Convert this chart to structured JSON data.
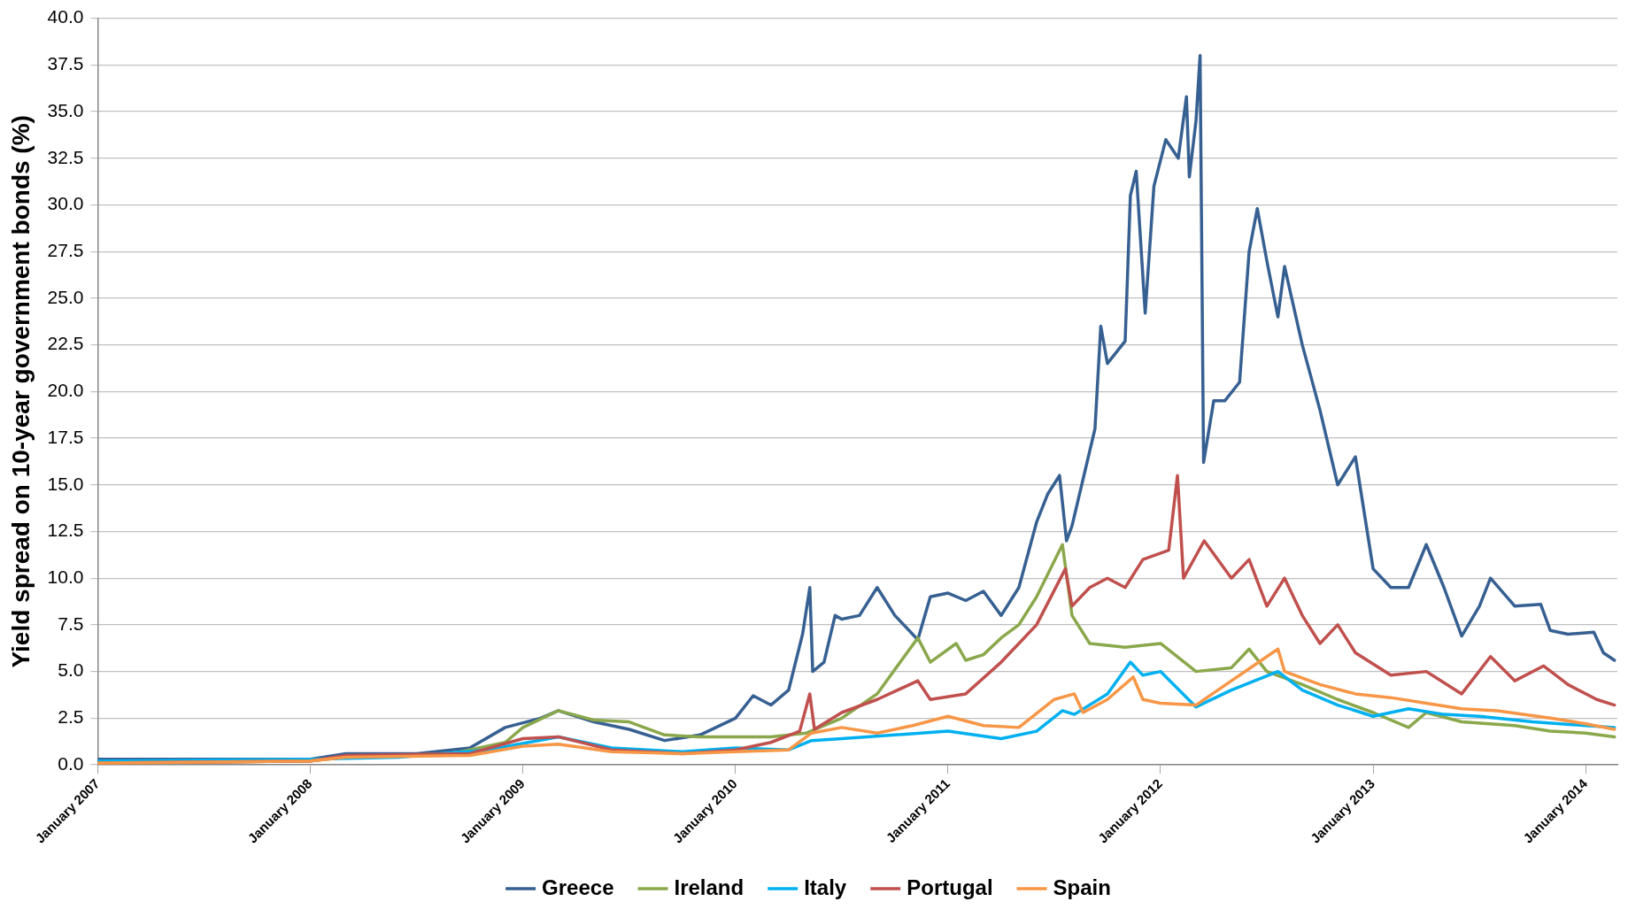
{
  "chart_data": {
    "type": "line",
    "ylabel": "Yield spread on 10-year government bonds (%)",
    "xlim": [
      "2007-01",
      "2014-02-25"
    ],
    "xticks": [
      {
        "value": "2007-01",
        "label": "January 2007"
      },
      {
        "value": "2008-01",
        "label": "January 2008"
      },
      {
        "value": "2009-01",
        "label": "January 2009"
      },
      {
        "value": "2010-01",
        "label": "January 2010"
      },
      {
        "value": "2011-01",
        "label": "January 2011"
      },
      {
        "value": "2012-01",
        "label": "January 2012"
      },
      {
        "value": "2013-01",
        "label": "January 2013"
      },
      {
        "value": "2014-01",
        "label": "January 2014"
      }
    ],
    "ylim": [
      0,
      40
    ],
    "yticks": [
      {
        "value": 0,
        "label": "0.0"
      },
      {
        "value": 2.5,
        "label": "2.5"
      },
      {
        "value": 5,
        "label": "5.0"
      },
      {
        "value": 7.5,
        "label": "7.5"
      },
      {
        "value": 10,
        "label": "10.0"
      },
      {
        "value": 12.5,
        "label": "12.5"
      },
      {
        "value": 15,
        "label": "15.0"
      },
      {
        "value": 17.5,
        "label": "17.5"
      },
      {
        "value": 20,
        "label": "20.0"
      },
      {
        "value": 22.5,
        "label": "22.5"
      },
      {
        "value": 25,
        "label": "25.0"
      },
      {
        "value": 27.5,
        "label": "27.5"
      },
      {
        "value": 30,
        "label": "30.0"
      },
      {
        "value": 32.5,
        "label": "32.5"
      },
      {
        "value": 35,
        "label": "35.0"
      },
      {
        "value": 37.5,
        "label": "37.5"
      },
      {
        "value": 40,
        "label": "40.0"
      }
    ],
    "grid": "y",
    "legend": "bottom",
    "marker": "none",
    "line_style": "solid",
    "series": [
      {
        "name": "Greece",
        "color": "#376092",
        "x": [
          "2007-01",
          "2007-07",
          "2008-01",
          "2008-03",
          "2008-07",
          "2008-10",
          "2008-12",
          "2009-02",
          "2009-03",
          "2009-05",
          "2009-07",
          "2009-09",
          "2009-11",
          "2010-01",
          "2010-02",
          "2010-03",
          "2010-04",
          "2010-04-25",
          "2010-05-07",
          "2010-05-12",
          "2010-06",
          "2010-06-20",
          "2010-07",
          "2010-08",
          "2010-09",
          "2010-10",
          "2010-11-10",
          "2010-12",
          "2011-01",
          "2011-02",
          "2011-03",
          "2011-04",
          "2011-05",
          "2011-06",
          "2011-06-20",
          "2011-07-10",
          "2011-07-22",
          "2011-08",
          "2011-09-10",
          "2011-09-20",
          "2011-10",
          "2011-11",
          "2011-11-10",
          "2011-11-20",
          "2011-12-05",
          "2011-12-20",
          "2012-01-10",
          "2012-02-01",
          "2012-02-15",
          "2012-02-20",
          "2012-03-01",
          "2012-03-08",
          "2012-03-14",
          "2012-04",
          "2012-04-20",
          "2012-05-15",
          "2012-06",
          "2012-06-15",
          "2012-07",
          "2012-07-20",
          "2012-08",
          "2012-09",
          "2012-10",
          "2012-11",
          "2012-12",
          "2013-01",
          "2013-02",
          "2013-03",
          "2013-04",
          "2013-05",
          "2013-06",
          "2013-07",
          "2013-07-20",
          "2013-09",
          "2013-10-15",
          "2013-11",
          "2013-12",
          "2014-01-15",
          "2014-02",
          "2014-02-20"
        ],
        "values": [
          0.3,
          0.3,
          0.3,
          0.6,
          0.6,
          0.9,
          2.0,
          2.5,
          2.9,
          2.3,
          1.9,
          1.3,
          1.6,
          2.5,
          3.7,
          3.2,
          4.0,
          7.0,
          9.5,
          5.0,
          5.5,
          8.0,
          7.8,
          8.0,
          9.5,
          8.0,
          6.7,
          9.0,
          9.2,
          8.8,
          9.3,
          8.0,
          9.5,
          13.0,
          14.5,
          15.5,
          12.0,
          12.8,
          18,
          23.5,
          21.5,
          22.7,
          30.5,
          31.8,
          24.2,
          31.0,
          33.5,
          32.5,
          35.8,
          31.5,
          34.5,
          38.0,
          16.2,
          19.5,
          19.5,
          20.5,
          27.5,
          29.8,
          27.0,
          24.0,
          26.7,
          22.5,
          19.0,
          15.0,
          16.5,
          10.5,
          9.5,
          9.5,
          11.8,
          9.5,
          6.9,
          8.5,
          10.0,
          8.5,
          8.6,
          7.2,
          7.0,
          7.1,
          6.0,
          5.6
        ]
      },
      {
        "name": "Ireland",
        "color": "#8aa84b",
        "x": [
          "2007-01",
          "2008-01",
          "2008-03",
          "2008-09",
          "2008-12",
          "2009-01",
          "2009-03",
          "2009-05",
          "2009-07",
          "2009-09",
          "2009-11",
          "2010-01",
          "2010-03",
          "2010-05",
          "2010-07",
          "2010-09",
          "2010-11-10",
          "2010-12",
          "2011-01-15",
          "2011-02",
          "2011-03",
          "2011-04",
          "2011-05",
          "2011-06",
          "2011-07-15",
          "2011-08",
          "2011-09",
          "2011-11",
          "2012-01",
          "2012-03",
          "2012-05",
          "2012-06",
          "2012-07",
          "2012-09",
          "2012-11",
          "2013-01",
          "2013-03",
          "2013-04",
          "2013-06",
          "2013-09",
          "2013-11",
          "2014-01",
          "2014-02-20"
        ],
        "values": [
          0.1,
          0.2,
          0.4,
          0.6,
          1.2,
          2.0,
          2.9,
          2.4,
          2.3,
          1.6,
          1.5,
          1.5,
          1.5,
          1.7,
          2.5,
          3.8,
          6.8,
          5.5,
          6.5,
          5.6,
          5.9,
          6.8,
          7.5,
          9.0,
          11.8,
          8.0,
          6.5,
          6.3,
          6.5,
          5.0,
          5.2,
          6.2,
          5.0,
          4.3,
          3.5,
          2.8,
          2.0,
          2.8,
          2.3,
          2.1,
          1.8,
          1.7,
          1.5
        ]
      },
      {
        "name": "Italy",
        "color": "#00b0f0",
        "x": [
          "2007-01",
          "2008-01",
          "2008-06",
          "2008-11",
          "2009-03",
          "2009-06",
          "2009-10",
          "2010-01",
          "2010-04",
          "2010-05-10",
          "2010-07",
          "2010-10",
          "2011-01",
          "2011-04",
          "2011-06",
          "2011-07-15",
          "2011-08-05",
          "2011-10",
          "2011-11-10",
          "2011-12",
          "2012-01",
          "2012-03",
          "2012-05",
          "2012-07-20",
          "2012-09",
          "2012-11",
          "2013-01",
          "2013-03",
          "2013-05",
          "2013-07",
          "2013-10",
          "2014-01",
          "2014-02-20"
        ],
        "values": [
          0.2,
          0.3,
          0.4,
          0.8,
          1.5,
          0.9,
          0.7,
          0.9,
          0.8,
          1.3,
          1.4,
          1.6,
          1.8,
          1.4,
          1.8,
          2.9,
          2.7,
          3.8,
          5.5,
          4.8,
          5.0,
          3.1,
          4.0,
          5.0,
          4.0,
          3.2,
          2.6,
          3.0,
          2.7,
          2.6,
          2.3,
          2.1,
          2.0
        ]
      },
      {
        "name": "Portugal",
        "color": "#c0504d",
        "x": [
          "2007-01",
          "2008-01",
          "2008-03",
          "2008-10",
          "2009-01",
          "2009-03",
          "2009-06",
          "2009-10",
          "2010-01",
          "2010-03",
          "2010-04-20",
          "2010-05-07",
          "2010-05-15",
          "2010-07",
          "2010-09",
          "2010-11-10",
          "2010-12",
          "2011-02",
          "2011-04",
          "2011-05",
          "2011-06",
          "2011-07-20",
          "2011-08",
          "2011-09",
          "2011-10",
          "2011-11",
          "2011-12",
          "2012-01-15",
          "2012-01-30",
          "2012-02-10",
          "2012-03-15",
          "2012-05",
          "2012-06",
          "2012-07",
          "2012-08",
          "2012-09",
          "2012-10",
          "2012-11",
          "2012-12",
          "2013-02",
          "2013-04",
          "2013-06",
          "2013-07-20",
          "2013-09",
          "2013-10-20",
          "2013-12",
          "2014-01-20",
          "2014-02-20"
        ],
        "values": [
          0.1,
          0.2,
          0.5,
          0.6,
          1.4,
          1.5,
          0.8,
          0.6,
          0.8,
          1.2,
          1.8,
          3.8,
          1.9,
          2.8,
          3.5,
          4.5,
          3.5,
          3.8,
          5.5,
          6.5,
          7.5,
          10.5,
          8.5,
          9.5,
          10.0,
          9.5,
          11.0,
          11.5,
          15.5,
          10.0,
          12.0,
          10.0,
          11.0,
          8.5,
          10.0,
          8.0,
          6.5,
          7.5,
          6.0,
          4.8,
          5.0,
          3.8,
          5.8,
          4.5,
          5.3,
          4.3,
          3.5,
          3.2
        ]
      },
      {
        "name": "Spain",
        "color": "#f79646",
        "x": [
          "2007-01",
          "2008-01",
          "2008-03",
          "2008-10",
          "2009-01",
          "2009-03",
          "2009-06",
          "2009-10",
          "2010-01",
          "2010-04",
          "2010-05-10",
          "2010-07",
          "2010-09",
          "2010-11",
          "2011-01",
          "2011-03",
          "2011-05",
          "2011-07",
          "2011-08-05",
          "2011-08-20",
          "2011-10",
          "2011-11-15",
          "2011-12",
          "2012-01",
          "2012-03",
          "2012-05",
          "2012-07-20",
          "2012-08",
          "2012-10",
          "2012-12",
          "2013-02",
          "2013-04",
          "2013-06",
          "2013-08",
          "2013-11",
          "2014-01",
          "2014-02-20"
        ],
        "values": [
          0.1,
          0.2,
          0.4,
          0.5,
          1.0,
          1.1,
          0.7,
          0.6,
          0.7,
          0.8,
          1.7,
          2.0,
          1.7,
          2.1,
          2.6,
          2.1,
          2.0,
          3.5,
          3.8,
          2.8,
          3.5,
          4.7,
          3.5,
          3.3,
          3.2,
          4.5,
          6.2,
          5.0,
          4.3,
          3.8,
          3.6,
          3.3,
          3.0,
          2.9,
          2.5,
          2.2,
          1.9
        ]
      }
    ]
  }
}
